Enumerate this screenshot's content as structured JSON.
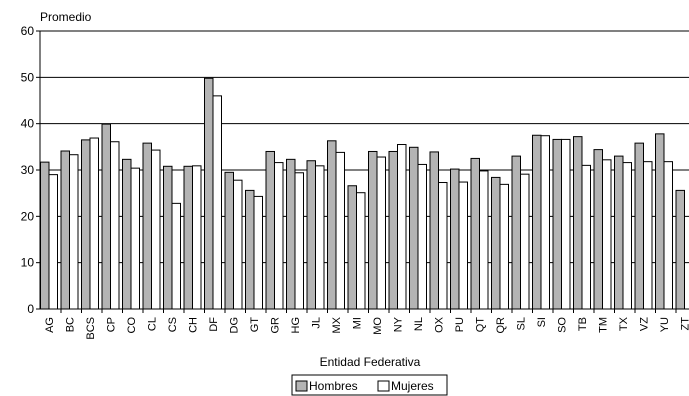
{
  "chart_data": {
    "type": "bar",
    "ylabel": "Promedio",
    "xlabel": "Entidad Federativa",
    "ylim": [
      0,
      60
    ],
    "yticks": [
      0,
      10,
      20,
      30,
      40,
      50,
      60
    ],
    "grid": true,
    "legend_placement": "bottom",
    "categories": [
      "AG",
      "BC",
      "BCS",
      "CP",
      "CO",
      "CL",
      "CS",
      "CH",
      "DF",
      "DG",
      "GT",
      "GR",
      "HG",
      "JL",
      "MX",
      "MI",
      "MO",
      "NY",
      "NL",
      "OX",
      "PU",
      "QT",
      "QR",
      "SL",
      "SI",
      "SO",
      "TB",
      "TM",
      "TX",
      "VZ",
      "YU",
      "ZT"
    ],
    "series": [
      {
        "name": "Hombres",
        "color": "#b4b4b4",
        "values": [
          31.7,
          34.1,
          36.5,
          39.9,
          32.3,
          35.8,
          30.8,
          30.8,
          49.8,
          29.5,
          25.6,
          34.0,
          32.3,
          32.0,
          36.3,
          26.6,
          34.0,
          34.0,
          34.9,
          33.9,
          30.2,
          32.5,
          28.4,
          33.0,
          37.5,
          36.6,
          37.2,
          34.4,
          33.0,
          35.8,
          37.8,
          25.6
        ]
      },
      {
        "name": "Mujeres",
        "color": "#ffffff",
        "values": [
          29.0,
          33.3,
          36.9,
          36.1,
          30.4,
          34.3,
          22.8,
          30.9,
          46.0,
          27.8,
          24.3,
          31.6,
          29.4,
          30.9,
          33.8,
          25.1,
          32.8,
          35.5,
          31.2,
          27.3,
          27.4,
          29.8,
          26.9,
          29.1,
          37.4,
          36.6,
          31.0,
          32.2,
          31.6,
          31.8,
          31.8,
          0
        ]
      }
    ]
  }
}
